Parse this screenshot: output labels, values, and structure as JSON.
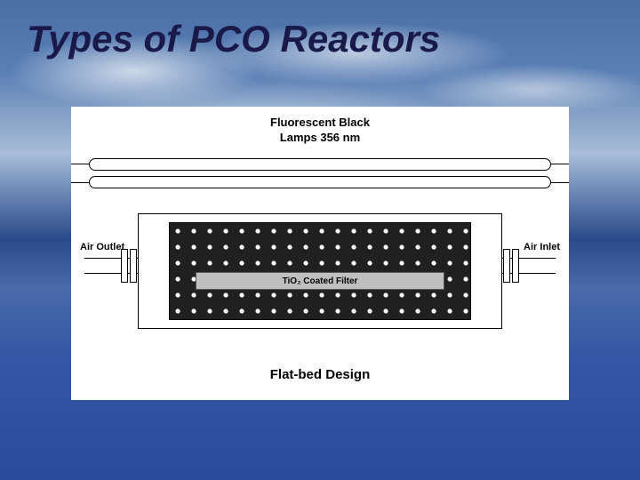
{
  "slide": {
    "title": "Types of PCO Reactors",
    "title_color": "#1a1a4a",
    "title_fontsize": 42,
    "diagram": {
      "background": "#ffffff",
      "lamp_label_line1": "Fluorescent Black",
      "lamp_label_line2": "Lamps 356 nm",
      "air_outlet_label": "Air Outlet",
      "air_inlet_label": "Air Inlet",
      "filter_label": "TiO₂ Coated Filter",
      "design_label": "Flat-bed Design",
      "filter_pattern_bg": "#202020",
      "filter_pattern_dot": "#ffffff",
      "tio2_bar_color": "#c0c0c0",
      "line_color": "#000000"
    },
    "background_gradient": [
      "#4a6fa5",
      "#2a4a9a"
    ]
  }
}
